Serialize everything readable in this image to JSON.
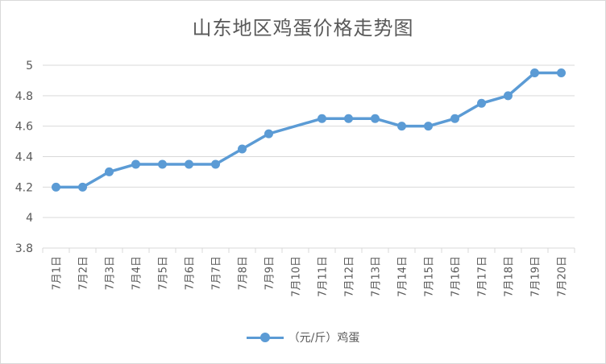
{
  "chart_data": {
    "type": "line",
    "title": "山东地区鸡蛋价格走势图",
    "categories": [
      "7月1日",
      "7月2日",
      "7月3日",
      "7月4日",
      "7月5日",
      "7月6日",
      "7月7日",
      "7月8日",
      "7月9日",
      "7月10日",
      "7月11日",
      "7月12日",
      "7月13日",
      "7月14日",
      "7月15日",
      "7月16日",
      "7月17日",
      "7月18日",
      "7月19日",
      "7月20日"
    ],
    "series": [
      {
        "name": "（元/斤）鸡蛋",
        "color": "#5b9bd5",
        "values": [
          4.2,
          4.2,
          4.3,
          4.35,
          4.35,
          4.35,
          4.35,
          4.45,
          4.55,
          null,
          4.65,
          4.65,
          4.65,
          4.6,
          4.6,
          4.65,
          4.75,
          4.8,
          4.95,
          4.95
        ]
      }
    ],
    "y_ticks": [
      "3.8",
      "4",
      "4.2",
      "4.4",
      "4.6",
      "4.8",
      "5"
    ],
    "ylim": [
      3.8,
      5.0
    ],
    "grid": true,
    "legend_position": "bottom"
  }
}
